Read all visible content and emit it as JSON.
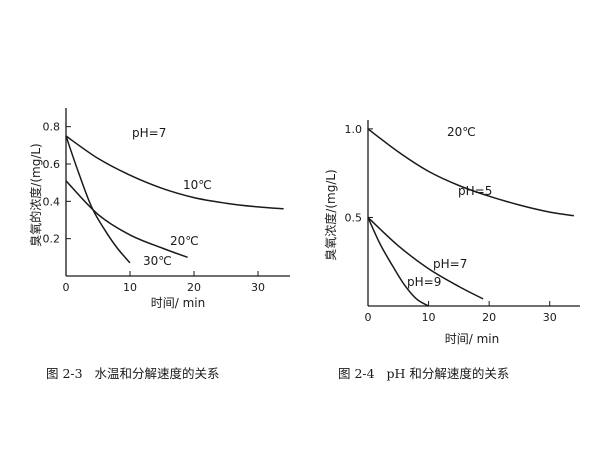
{
  "chart_data": [
    {
      "type": "line",
      "title": "pH=7",
      "caption": "图 2-3   水温和分解速度的关系",
      "xlabel": "时间/ min",
      "ylabel": "臭氧的浓度/(mg/L)",
      "xlim": [
        0,
        35
      ],
      "ylim": [
        0,
        0.9
      ],
      "xticks": [
        0,
        10,
        20,
        30
      ],
      "yticks": [
        0.2,
        0.4,
        0.6,
        0.8
      ],
      "grid": false,
      "series": [
        {
          "name": "10℃",
          "points": [
            [
              0,
              0.75
            ],
            [
              5,
              0.63
            ],
            [
              10,
              0.54
            ],
            [
              15,
              0.47
            ],
            [
              20,
              0.42
            ],
            [
              25,
              0.39
            ],
            [
              30,
              0.37
            ],
            [
              34,
              0.36
            ]
          ]
        },
        {
          "name": "20℃",
          "points": [
            [
              0,
              0.51
            ],
            [
              5,
              0.33
            ],
            [
              10,
              0.22
            ],
            [
              15,
              0.15
            ],
            [
              19,
              0.1
            ]
          ]
        },
        {
          "name": "30℃",
          "points": [
            [
              0,
              0.75
            ],
            [
              2,
              0.55
            ],
            [
              4,
              0.37
            ],
            [
              6,
              0.25
            ],
            [
              8,
              0.15
            ],
            [
              10,
              0.07
            ]
          ]
        }
      ]
    },
    {
      "type": "line",
      "title": "20℃",
      "caption": "图 2-4   pH 和分解速度的关系",
      "xlabel": "时间/ min",
      "ylabel": "臭氧浓度/(mg/L)",
      "xlim": [
        0,
        35
      ],
      "ylim": [
        0,
        1.05
      ],
      "xticks": [
        0,
        10,
        20,
        30
      ],
      "yticks": [
        0.5,
        1.0
      ],
      "grid": false,
      "series": [
        {
          "name": "pH=5",
          "points": [
            [
              0,
              1.0
            ],
            [
              5,
              0.87
            ],
            [
              10,
              0.76
            ],
            [
              15,
              0.68
            ],
            [
              20,
              0.62
            ],
            [
              25,
              0.57
            ],
            [
              30,
              0.53
            ],
            [
              34,
              0.51
            ]
          ]
        },
        {
          "name": "pH=7",
          "points": [
            [
              0,
              0.5
            ],
            [
              5,
              0.34
            ],
            [
              10,
              0.21
            ],
            [
              15,
              0.11
            ],
            [
              19,
              0.04
            ]
          ]
        },
        {
          "name": "pH=9",
          "points": [
            [
              0,
              0.5
            ],
            [
              2,
              0.35
            ],
            [
              4,
              0.23
            ],
            [
              6,
              0.12
            ],
            [
              8,
              0.04
            ],
            [
              10,
              0.0
            ]
          ]
        }
      ]
    }
  ]
}
